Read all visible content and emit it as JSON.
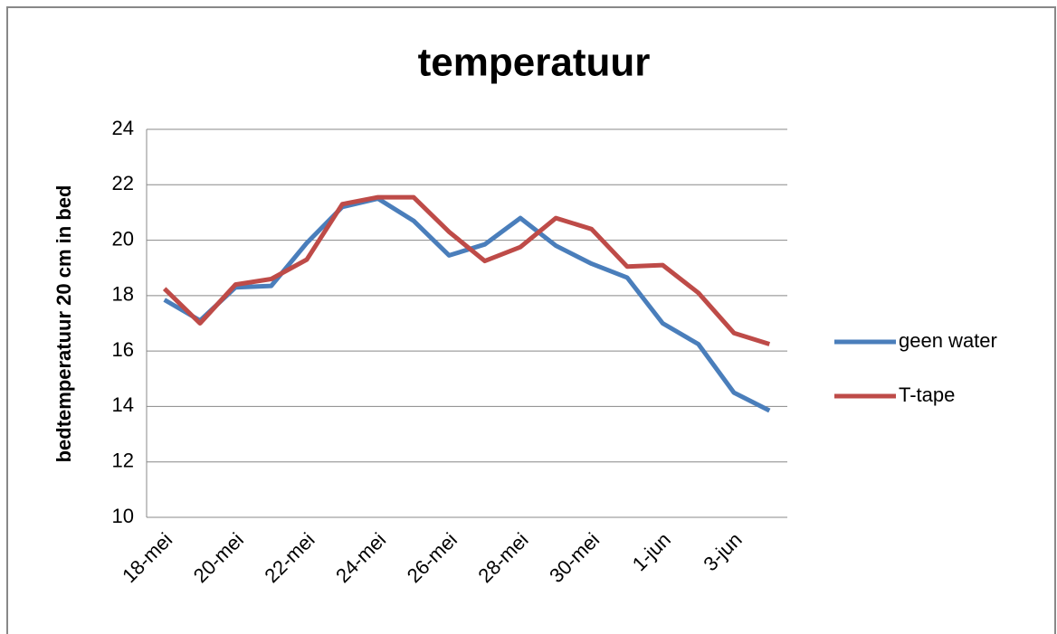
{
  "chart_data": {
    "type": "line",
    "title": "temperatuur",
    "y_label": "bedtemperatuur 20 cm in bed",
    "categories": [
      "18-mei",
      null,
      "20-mei",
      null,
      "22-mei",
      null,
      "24-mei",
      null,
      "26-mei",
      null,
      "28-mei",
      null,
      "30-mei",
      null,
      "1-jun",
      null,
      "3-jun",
      null
    ],
    "series": [
      {
        "name": "geen water",
        "color": "#4a7ebb",
        "values": [
          17.85,
          17.1,
          18.3,
          18.35,
          19.9,
          21.2,
          21.5,
          20.7,
          19.45,
          19.85,
          20.8,
          19.8,
          19.15,
          18.65,
          17.0,
          16.25,
          14.5,
          13.85
        ]
      },
      {
        "name": "T-tape",
        "color": "#be4b48",
        "values": [
          18.25,
          17.0,
          18.4,
          18.6,
          19.3,
          21.3,
          21.55,
          21.55,
          20.3,
          19.25,
          19.75,
          20.8,
          20.4,
          19.05,
          19.1,
          18.1,
          16.65,
          16.25
        ]
      }
    ],
    "ylim": [
      10,
      24
    ],
    "yticks": [
      10,
      12,
      14,
      16,
      18,
      20,
      22,
      24
    ],
    "grid": true,
    "legend": "right"
  }
}
